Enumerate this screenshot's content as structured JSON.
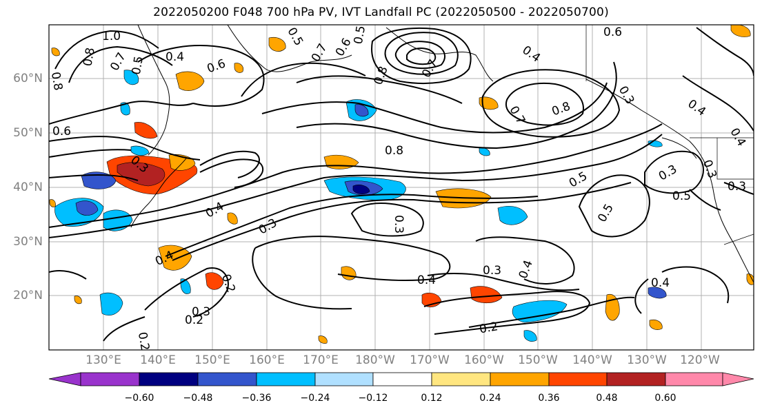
{
  "title": "2022050200 F048 700 hPa PV, IVT Landfall PC (2022050500 - 2022050700)",
  "map": {
    "lat_labels": [
      "60°N",
      "50°N",
      "40°N",
      "30°N",
      "20°N"
    ],
    "lon_labels": [
      "130°E",
      "140°E",
      "150°E",
      "160°E",
      "170°E",
      "180°W",
      "170°W",
      "160°W",
      "150°W",
      "140°W",
      "130°W",
      "120°W"
    ],
    "contour_labels": [
      "1.0",
      "0.8",
      "0.7",
      "0.5",
      "0.4",
      "0.6",
      "0.8",
      "0.6",
      "0.5",
      "0.7",
      "0.6",
      "0.5",
      "0.4",
      "0.3",
      "0.6",
      "0.8",
      "0.7",
      "0.4",
      "0.8",
      "0.7",
      "0.8",
      "0.3",
      "0.5",
      "0.4",
      "0.3",
      "0.4",
      "0.3",
      "0.5",
      "0.3",
      "0.3",
      "0.5",
      "0.3",
      "0.4",
      "0.2",
      "0.3",
      "0.2",
      "0.4",
      "0.3",
      "0.4",
      "0.4",
      "0.2",
      "0.2"
    ]
  },
  "colorbar": {
    "colors": [
      "#9933cc",
      "#000080",
      "#3355cc",
      "#00bfff",
      "#b0e0ff",
      "#ffffff",
      "#ffe680",
      "#ffa500",
      "#ff4500",
      "#b22222",
      "#ff88aa"
    ],
    "tick_labels": [
      "−0.60",
      "−0.48",
      "−0.36",
      "−0.24",
      "−0.12",
      "0.12",
      "0.24",
      "0.36",
      "0.48",
      "0.60"
    ]
  }
}
